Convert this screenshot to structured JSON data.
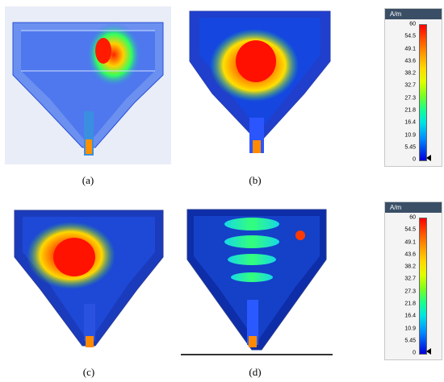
{
  "panels": [
    {
      "id": "a",
      "caption": "(a)"
    },
    {
      "id": "b",
      "caption": "(b)"
    },
    {
      "id": "c",
      "caption": "(c)"
    },
    {
      "id": "d",
      "caption": "(d)"
    }
  ],
  "scale_top": {
    "unit": "A/m",
    "ticks": [
      "60",
      "54.5",
      "49.1",
      "43.6",
      "38.2",
      "32.7",
      "27.3",
      "21.8",
      "16.4",
      "10.9",
      "5.45",
      "0"
    ]
  },
  "scale_bottom": {
    "unit": "A/m",
    "ticks": [
      "60",
      "54.5",
      "49.1",
      "43.6",
      "38.2",
      "32.7",
      "27.3",
      "21.8",
      "16.4",
      "10.9",
      "5.45",
      "0"
    ]
  },
  "colors": {
    "low": "#0000d8",
    "mid": "#1aff8a",
    "high": "#ff0000",
    "panel_bg": "#2b4fd6"
  }
}
